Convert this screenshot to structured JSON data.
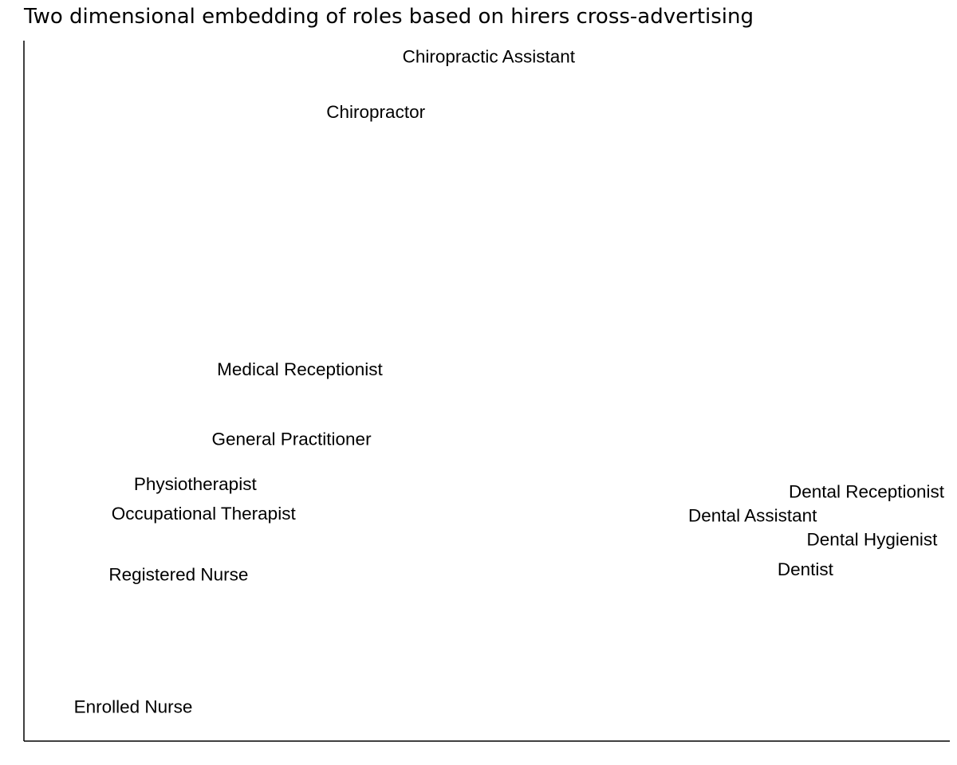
{
  "chart_data": {
    "type": "scatter",
    "title": "Two dimensional embedding of roles based on hirers cross-advertising",
    "xlabel": "",
    "ylabel": "",
    "grid": false,
    "xlim": [
      0,
      1
    ],
    "ylim": [
      0,
      1
    ],
    "points": [
      {
        "label": "Chiropractic Assistant",
        "x": 0.502,
        "y": 0.977
      },
      {
        "label": "Chiropractor",
        "x": 0.38,
        "y": 0.898
      },
      {
        "label": "Medical Receptionist",
        "x": 0.298,
        "y": 0.531
      },
      {
        "label": "General Practitioner",
        "x": 0.289,
        "y": 0.431
      },
      {
        "label": "Physiotherapist",
        "x": 0.185,
        "y": 0.367
      },
      {
        "label": "Occupational Therapist",
        "x": 0.194,
        "y": 0.325
      },
      {
        "label": "Registered Nurse",
        "x": 0.167,
        "y": 0.238
      },
      {
        "label": "Enrolled Nurse",
        "x": 0.118,
        "y": 0.049
      },
      {
        "label": "Dental Receptionist",
        "x": 0.91,
        "y": 0.356
      },
      {
        "label": "Dental Assistant",
        "x": 0.787,
        "y": 0.322
      },
      {
        "label": "Dental Hygienist",
        "x": 0.916,
        "y": 0.288
      },
      {
        "label": "Dentist",
        "x": 0.844,
        "y": 0.245
      }
    ]
  }
}
